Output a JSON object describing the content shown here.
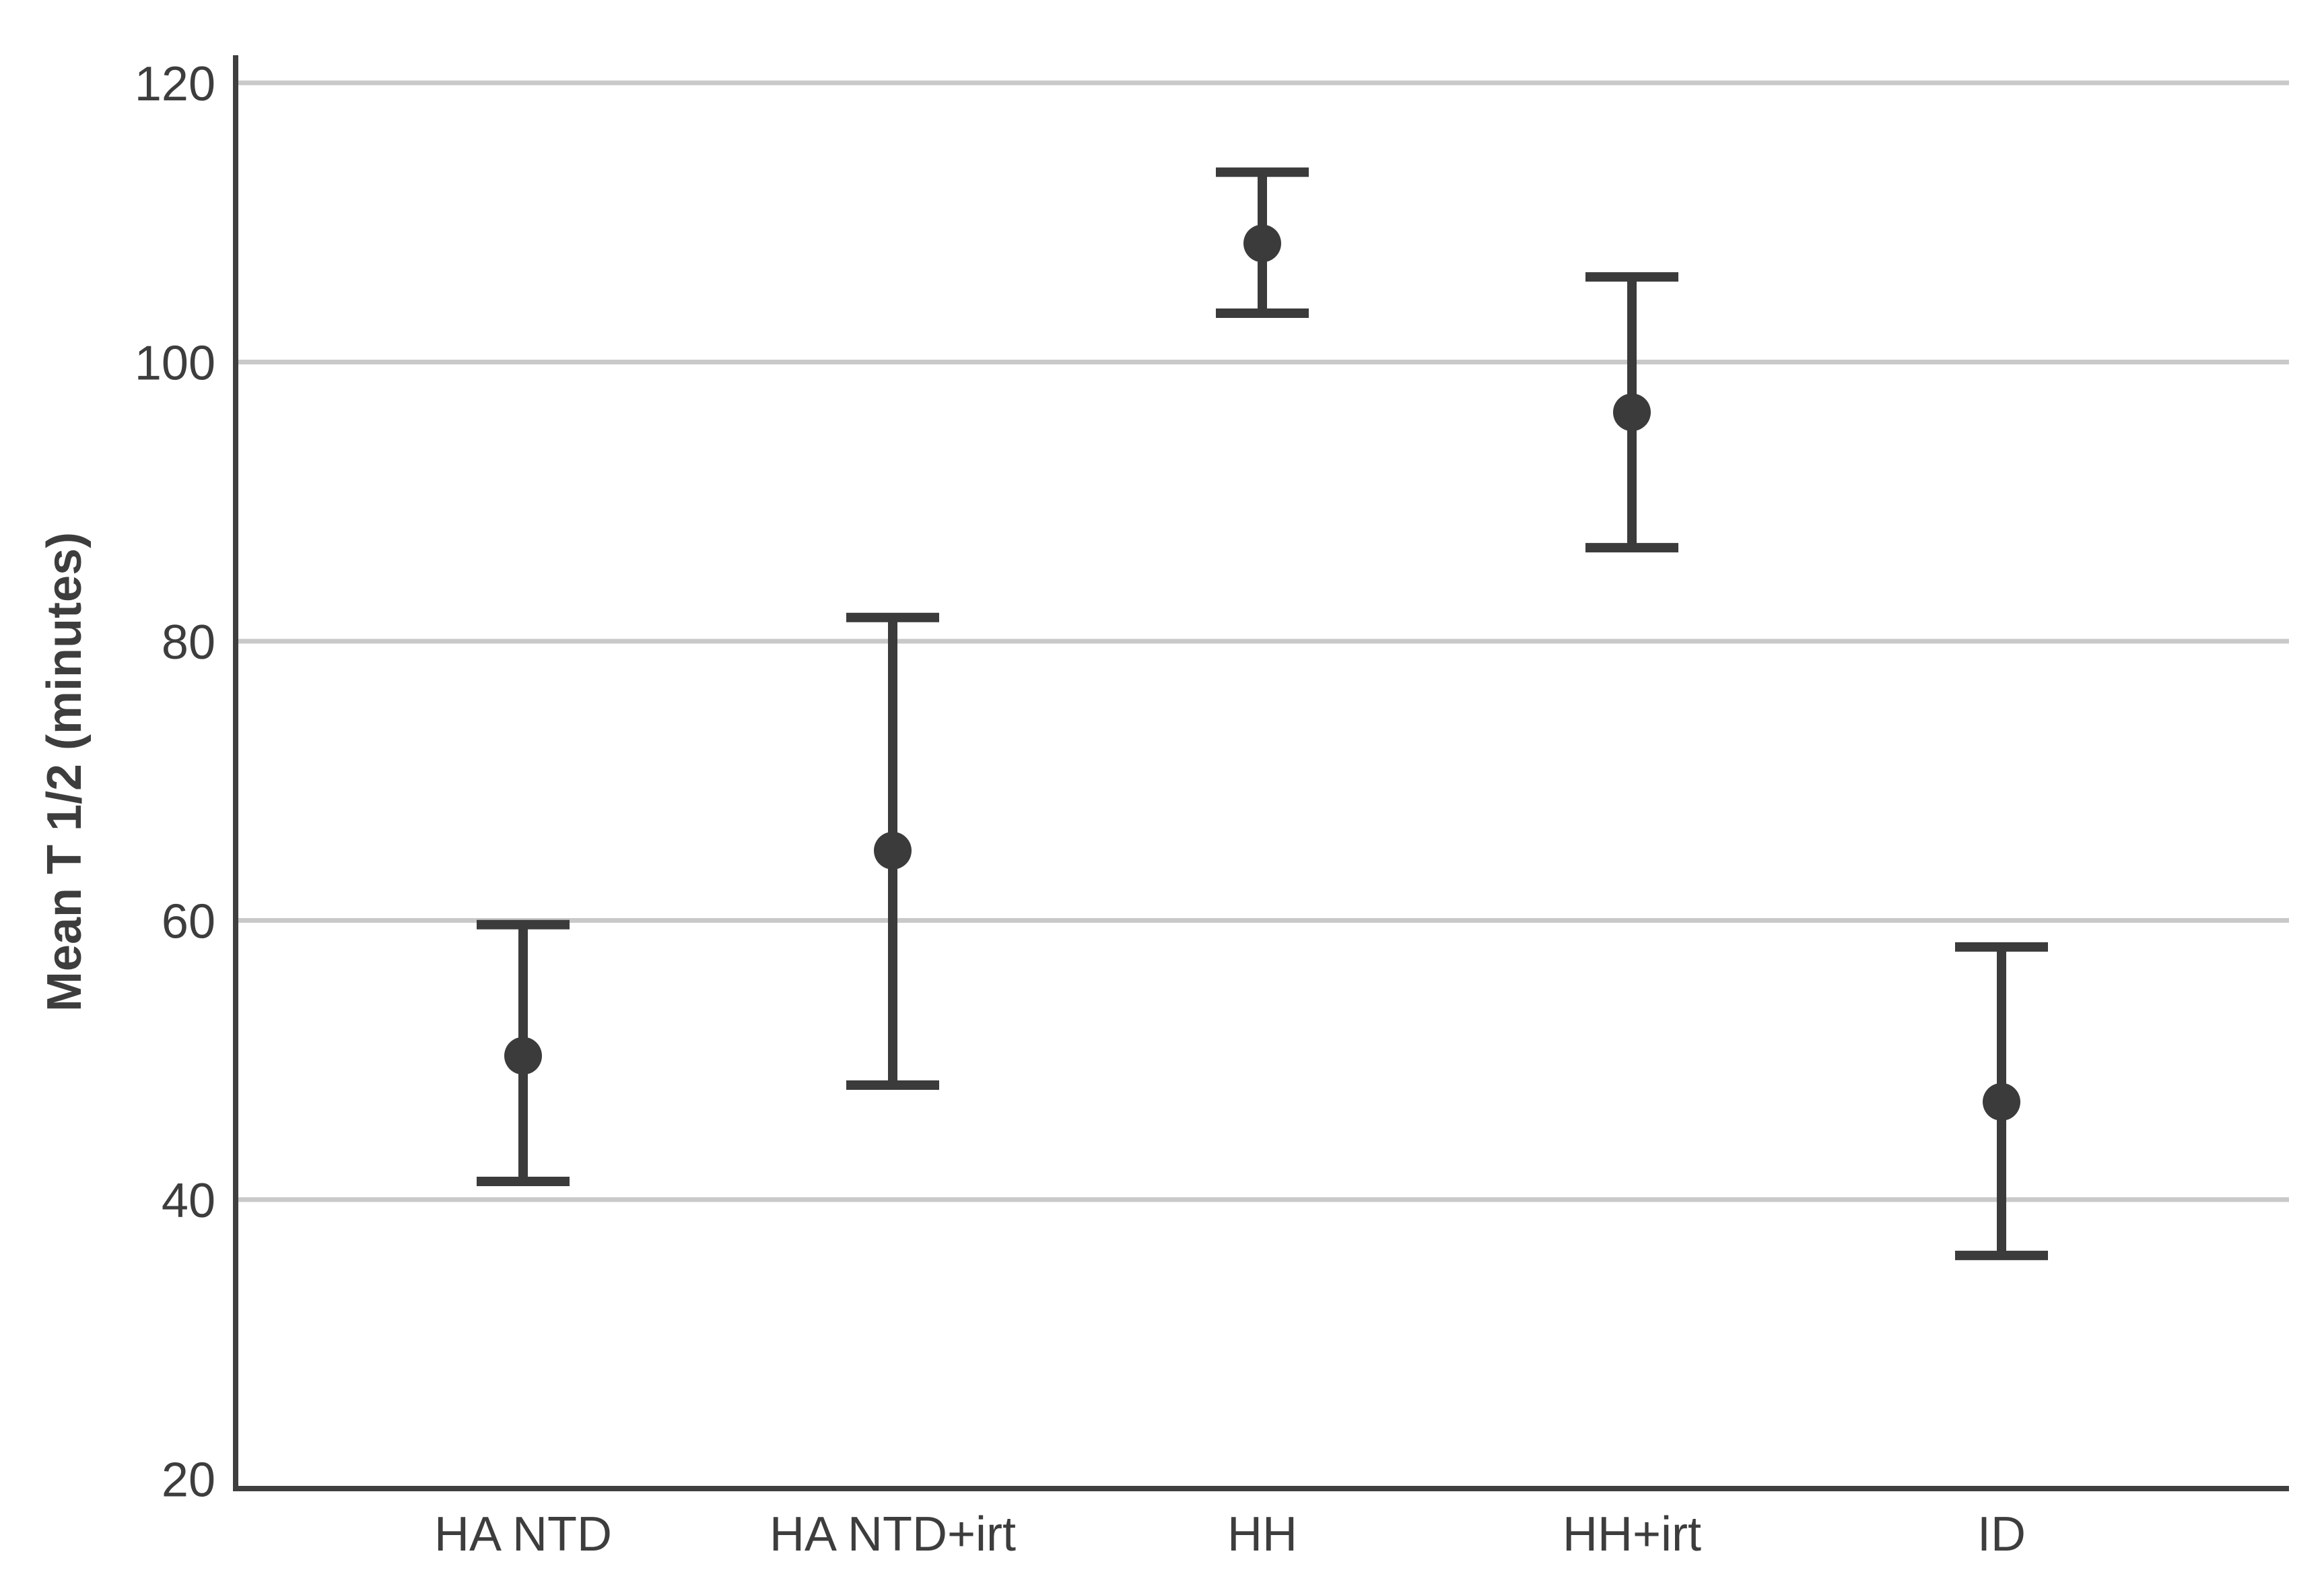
{
  "figure": {
    "background": "#ffffff"
  },
  "colors": {
    "marker": "#3b3b3b",
    "error_bar": "#3b3b3b",
    "gridline": "#c9c9c9",
    "axis_line": "#3f3f3f",
    "text": "#3d3d3d"
  },
  "chart_data": {
    "type": "scatter",
    "subtype": "point-estimates-with-error-bars",
    "title": "",
    "xlabel": "",
    "ylabel": "Mean T 1/2 (minutes)",
    "categories": [
      "HA NTD",
      "HA NTD+irt",
      "HH",
      "HH+irt",
      "ID"
    ],
    "points": [
      {
        "category": "HA NTD",
        "mean": 50.3,
        "ci_low": 41.3,
        "ci_high": 59.7
      },
      {
        "category": "HA NTD+irt",
        "mean": 65.0,
        "ci_low": 48.2,
        "ci_high": 81.7
      },
      {
        "category": "HH",
        "mean": 108.5,
        "ci_low": 103.5,
        "ci_high": 113.6
      },
      {
        "category": "HH+irt",
        "mean": 96.4,
        "ci_low": 86.7,
        "ci_high": 106.1
      },
      {
        "category": "ID",
        "mean": 47.0,
        "ci_low": 36.0,
        "ci_high": 58.1
      }
    ],
    "yticks": [
      20,
      40,
      60,
      80,
      100,
      120
    ],
    "ylim": [
      20,
      120
    ],
    "grid": "horizontal",
    "legend": "none",
    "marker_style": "filled circle with capped vertical error bars"
  }
}
